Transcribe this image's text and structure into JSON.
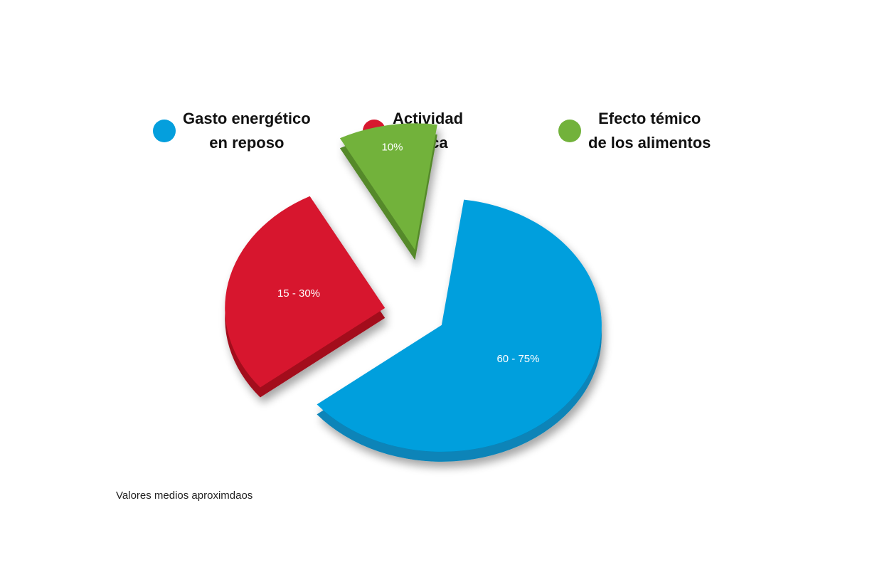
{
  "chart_data": {
    "type": "pie",
    "exploded": true,
    "legend_position": "top",
    "series": [
      {
        "name_lines": [
          "Gasto energético",
          "en reposo"
        ],
        "label": "60 - 75%",
        "value": 62,
        "color": "#049fdd",
        "side_color": "#0784b8"
      },
      {
        "name_lines": [
          "Actividad",
          "física"
        ],
        "label": "15 - 30%",
        "value": 28,
        "color": "#d7182f",
        "side_color": "#a3101f"
      },
      {
        "name_lines": [
          "Efecto témico",
          "de los alimentos"
        ],
        "label": "10%",
        "value": 10,
        "color": "#72b23b",
        "side_color": "#54892a"
      }
    ]
  },
  "note": "Valores medios aproximdaos"
}
